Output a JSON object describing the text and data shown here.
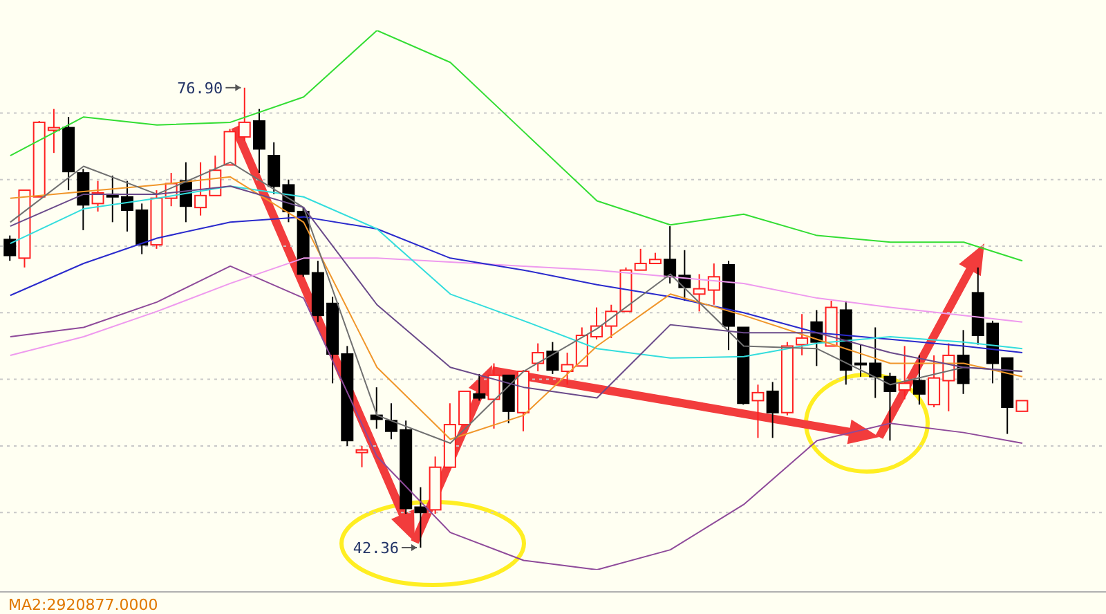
{
  "chart_data": {
    "type": "candlestick",
    "categories": [
      null,
      null,
      null,
      null,
      null,
      null,
      null,
      null,
      null,
      null,
      null,
      null,
      null,
      null,
      null,
      null,
      null,
      null,
      null,
      null,
      null,
      null,
      null,
      null,
      null,
      null,
      null,
      null,
      null,
      null,
      null,
      null,
      null,
      null,
      null,
      null,
      null,
      null,
      null,
      null,
      null,
      null,
      null,
      null,
      null,
      null,
      null,
      null,
      null,
      null,
      null,
      null,
      null,
      null,
      null,
      null,
      null,
      null,
      null,
      null,
      null,
      null,
      null,
      null,
      null,
      null,
      null,
      null,
      null,
      null
    ],
    "ohlc": [
      [
        65.5,
        65.8,
        63.9,
        64.3
      ],
      [
        64.1,
        69.2,
        63.4,
        69.2
      ],
      [
        68.7,
        74.4,
        68.7,
        74.3
      ],
      [
        73.7,
        75.3,
        72.0,
        73.9
      ],
      [
        73.9,
        74.7,
        69.2,
        70.6
      ],
      [
        70.5,
        70.8,
        66.2,
        68.1
      ],
      [
        68.2,
        69.9,
        67.6,
        69.0
      ],
      [
        68.9,
        70.3,
        66.8,
        68.7
      ],
      [
        68.7,
        69.9,
        66.1,
        67.7
      ],
      [
        67.7,
        68.2,
        64.4,
        65.1
      ],
      [
        65.1,
        69.2,
        64.8,
        68.6
      ],
      [
        68.6,
        70.5,
        68.0,
        69.7
      ],
      [
        69.9,
        71.3,
        66.8,
        68.0
      ],
      [
        67.9,
        71.3,
        67.3,
        68.8
      ],
      [
        68.8,
        71.8,
        68.8,
        70.7
      ],
      [
        71.1,
        73.8,
        71.1,
        73.6
      ],
      [
        73.2,
        76.9,
        72.9,
        74.3
      ],
      [
        74.4,
        75.3,
        70.5,
        72.3
      ],
      [
        71.8,
        72.8,
        68.9,
        69.5
      ],
      [
        69.6,
        70.0,
        66.8,
        67.6
      ],
      [
        67.6,
        67.9,
        62.7,
        62.9
      ],
      [
        63.0,
        63.9,
        59.3,
        59.8
      ],
      [
        60.7,
        61.2,
        54.7,
        56.9
      ],
      [
        56.9,
        57.5,
        50.0,
        50.4
      ],
      [
        49.5,
        50.0,
        48.4,
        49.7
      ],
      [
        52.3,
        54.4,
        51.3,
        52.0
      ],
      [
        51.9,
        53.2,
        50.5,
        51.1
      ],
      [
        51.2,
        51.9,
        44.9,
        45.3
      ],
      [
        45.4,
        46.9,
        42.36,
        45.0
      ],
      [
        45.2,
        49.2,
        44.9,
        48.4
      ],
      [
        48.4,
        53.2,
        48.4,
        51.6
      ],
      [
        51.6,
        54.1,
        51.6,
        54.1
      ],
      [
        53.9,
        55.4,
        53.4,
        53.6
      ],
      [
        53.5,
        56.2,
        51.3,
        55.3
      ],
      [
        55.3,
        55.3,
        51.7,
        52.6
      ],
      [
        52.5,
        55.7,
        51.1,
        55.6
      ],
      [
        56.2,
        57.7,
        55.6,
        57.0
      ],
      [
        57.1,
        57.8,
        55.4,
        55.7
      ],
      [
        55.6,
        57.0,
        54.6,
        56.1
      ],
      [
        56.0,
        58.9,
        56.0,
        58.3
      ],
      [
        58.2,
        60.4,
        58.0,
        59.0
      ],
      [
        59.0,
        60.6,
        58.1,
        60.1
      ],
      [
        60.1,
        63.4,
        60.1,
        63.2
      ],
      [
        63.2,
        64.8,
        63.2,
        63.7
      ],
      [
        63.7,
        64.5,
        63.7,
        64.0
      ],
      [
        64.0,
        66.5,
        62.2,
        62.7
      ],
      [
        62.8,
        64.7,
        60.9,
        61.9
      ],
      [
        61.4,
        62.9,
        60.1,
        61.8
      ],
      [
        61.7,
        63.7,
        60.6,
        62.7
      ],
      [
        63.6,
        63.9,
        57.2,
        59.0
      ],
      [
        58.9,
        58.9,
        53.1,
        53.2
      ],
      [
        53.4,
        54.6,
        50.6,
        54.0
      ],
      [
        54.1,
        54.8,
        50.6,
        52.5
      ],
      [
        52.5,
        57.8,
        52.3,
        57.5
      ],
      [
        57.6,
        59.9,
        56.8,
        58.1
      ],
      [
        59.3,
        60.2,
        56.0,
        57.8
      ],
      [
        57.5,
        60.9,
        57.5,
        60.4
      ],
      [
        60.2,
        60.9,
        54.6,
        55.7
      ],
      [
        56.2,
        57.6,
        55.2,
        56.1
      ],
      [
        56.2,
        58.9,
        53.6,
        55.2
      ],
      [
        55.2,
        55.5,
        50.4,
        54.1
      ],
      [
        54.2,
        57.5,
        53.5,
        54.7
      ],
      [
        54.9,
        56.8,
        53.1,
        53.9
      ],
      [
        53.1,
        56.8,
        52.9,
        55.1
      ],
      [
        54.9,
        57.7,
        52.6,
        56.8
      ],
      [
        56.8,
        58.7,
        53.9,
        54.7
      ],
      [
        61.5,
        63.4,
        57.6,
        58.3
      ],
      [
        59.2,
        59.4,
        54.7,
        56.2
      ],
      [
        56.6,
        56.6,
        50.9,
        52.9
      ],
      [
        52.6,
        53.4,
        52.6,
        53.4
      ]
    ],
    "yticks": [
      {
        "value": 45,
        "label": null
      },
      {
        "value": 50,
        "label": null
      },
      {
        "value": 55,
        "label": null
      },
      {
        "value": 60,
        "label": null
      },
      {
        "value": 65,
        "label": null
      },
      {
        "value": 70,
        "label": null
      },
      {
        "value": 75,
        "label": null
      }
    ],
    "grid": "y",
    "series": [
      {
        "type": "line",
        "color": "#33dd33",
        "values": [
          71.8,
          null,
          null,
          null,
          null,
          74.7,
          null,
          null,
          null,
          null,
          74.1,
          null,
          null,
          null,
          null,
          74.3,
          null,
          null,
          null,
          null,
          76.2,
          null,
          null,
          null,
          null,
          81.2,
          null,
          null,
          null,
          null,
          78.8,
          null,
          null,
          null,
          null,
          73.6,
          null,
          null,
          null,
          null,
          68.4,
          null,
          null,
          null,
          null,
          66.6,
          null,
          null,
          null,
          null,
          67.4,
          null,
          null,
          null,
          null,
          65.8,
          null,
          null,
          null,
          null,
          65.3,
          null,
          null,
          null,
          null,
          65.3,
          null,
          null,
          null,
          63.9
        ]
      },
      {
        "type": "line",
        "color": "#8e4a9a",
        "values": [
          58.2,
          null,
          null,
          null,
          null,
          58.9,
          null,
          null,
          null,
          null,
          60.8,
          null,
          null,
          null,
          null,
          63.5,
          null,
          null,
          null,
          null,
          61.1,
          null,
          null,
          null,
          null,
          49.2,
          null,
          null,
          null,
          null,
          43.5,
          null,
          null,
          null,
          null,
          41.4,
          null,
          null,
          null,
          null,
          40.7,
          null,
          null,
          null,
          null,
          42.2,
          null,
          null,
          null,
          null,
          45.6,
          null,
          null,
          null,
          null,
          50.4,
          null,
          null,
          null,
          null,
          51.7,
          null,
          null,
          null,
          null,
          51.0,
          null,
          null,
          null,
          50.2
        ]
      },
      {
        "type": "line",
        "color": "#ee99ee",
        "values": [
          56.8,
          null,
          null,
          null,
          null,
          58.2,
          null,
          null,
          null,
          null,
          60.1,
          null,
          null,
          null,
          null,
          62.2,
          null,
          null,
          null,
          null,
          64.1,
          null,
          null,
          null,
          null,
          64.1,
          null,
          null,
          null,
          null,
          63.8,
          null,
          null,
          null,
          null,
          63.5,
          null,
          null,
          null,
          null,
          63.2,
          null,
          null,
          null,
          null,
          62.7,
          null,
          null,
          null,
          null,
          62.2,
          null,
          null,
          null,
          null,
          61.1,
          null,
          null,
          null,
          null,
          60.4,
          null,
          null,
          null,
          null,
          59.8,
          null,
          null,
          null,
          59.3
        ]
      },
      {
        "type": "line",
        "color": "#2a2acc",
        "values": [
          61.3,
          null,
          null,
          null,
          null,
          63.7,
          null,
          null,
          null,
          null,
          65.6,
          null,
          null,
          null,
          null,
          66.8,
          null,
          null,
          null,
          null,
          67.2,
          null,
          null,
          null,
          null,
          66.3,
          null,
          null,
          null,
          null,
          64.1,
          null,
          null,
          null,
          null,
          63.2,
          null,
          null,
          null,
          null,
          62.1,
          null,
          null,
          null,
          null,
          61.2,
          null,
          null,
          null,
          null,
          60.0,
          null,
          null,
          null,
          null,
          58.5,
          null,
          null,
          null,
          null,
          58.0,
          null,
          null,
          null,
          null,
          57.5,
          null,
          null,
          null,
          57.0
        ]
      },
      {
        "type": "line",
        "color": "#33dddd",
        "values": [
          65.2,
          null,
          null,
          null,
          null,
          67.8,
          null,
          null,
          null,
          null,
          68.6,
          null,
          null,
          null,
          null,
          69.5,
          null,
          null,
          null,
          null,
          68.7,
          null,
          null,
          null,
          null,
          66.3,
          null,
          null,
          null,
          null,
          61.4,
          null,
          null,
          null,
          null,
          59.4,
          null,
          null,
          null,
          null,
          57.3,
          null,
          null,
          null,
          null,
          56.6,
          null,
          null,
          null,
          null,
          56.7,
          null,
          null,
          null,
          null,
          57.7,
          null,
          null,
          null,
          null,
          58.2,
          null,
          null,
          null,
          null,
          57.8,
          null,
          null,
          null,
          57.3
        ]
      },
      {
        "type": "line",
        "color": "#f0962a",
        "values": [
          68.6,
          null,
          null,
          null,
          null,
          69.1,
          null,
          null,
          null,
          null,
          69.6,
          null,
          null,
          null,
          null,
          70.2,
          null,
          null,
          null,
          null,
          66.8,
          null,
          null,
          null,
          null,
          55.9,
          null,
          null,
          null,
          null,
          50.5,
          null,
          null,
          null,
          null,
          52.3,
          null,
          null,
          null,
          null,
          57.5,
          null,
          null,
          null,
          null,
          61.4,
          null,
          null,
          null,
          null,
          59.8,
          null,
          null,
          null,
          null,
          58.0,
          null,
          null,
          null,
          null,
          56.2,
          null,
          null,
          null,
          null,
          56.2,
          null,
          null,
          null,
          55.2
        ]
      },
      {
        "type": "line",
        "color": "#707070",
        "values": [
          66.8,
          null,
          null,
          null,
          null,
          71.0,
          null,
          null,
          null,
          null,
          68.9,
          null,
          null,
          null,
          null,
          71.3,
          null,
          null,
          null,
          null,
          67.9,
          null,
          null,
          null,
          null,
          52.3,
          null,
          null,
          null,
          null,
          50.2,
          null,
          null,
          null,
          null,
          55.6,
          null,
          null,
          null,
          null,
          58.8,
          null,
          null,
          null,
          null,
          62.9,
          null,
          null,
          null,
          null,
          57.5,
          null,
          null,
          null,
          null,
          57.3,
          null,
          null,
          null,
          null,
          54.6,
          null,
          null,
          null,
          null,
          55.9,
          null,
          null,
          null,
          55.6
        ]
      },
      {
        "type": "line",
        "color": "#6a4a8a",
        "values": [
          66.5,
          null,
          null,
          null,
          null,
          68.9,
          null,
          null,
          null,
          null,
          68.9,
          null,
          null,
          null,
          null,
          69.5,
          null,
          null,
          null,
          null,
          67.9,
          null,
          null,
          null,
          null,
          60.6,
          null,
          null,
          null,
          null,
          55.9,
          null,
          null,
          null,
          null,
          54.4,
          null,
          null,
          null,
          null,
          53.6,
          null,
          null,
          null,
          null,
          59.1,
          null,
          null,
          null,
          null,
          58.5,
          null,
          null,
          null,
          null,
          58.5,
          null,
          null,
          null,
          null,
          57.0,
          null,
          null,
          null,
          null,
          55.9,
          null,
          null,
          null,
          55.6
        ]
      }
    ],
    "annotations": [
      "76.90",
      "42.36",
      "MA2:2920877.0000"
    ]
  }
}
